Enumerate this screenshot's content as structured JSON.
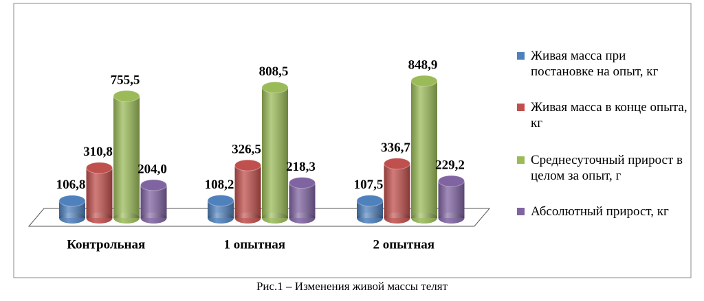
{
  "chart_data": {
    "type": "bar",
    "title": "Рис.1 – Изменения живой массы телят",
    "categories": [
      "Контрольная",
      "1 опытная",
      "2 опытная"
    ],
    "series": [
      {
        "name": "Живая масса при постановке на опыт, кг",
        "color": "#4f81bd",
        "values": [
          106.8,
          108.2,
          107.5
        ],
        "value_labels": [
          "106,8",
          "108,2",
          "107,5"
        ]
      },
      {
        "name": "Живая масса в конце опыта, кг",
        "color": "#c0504d",
        "values": [
          310.8,
          326.5,
          336.7
        ],
        "value_labels": [
          "310,8",
          "326,5",
          "336,7"
        ]
      },
      {
        "name": "Среднесуточный прирост в целом за опыт, г",
        "color": "#9bbb59",
        "values": [
          755.5,
          808.5,
          848.9
        ],
        "value_labels": [
          "755,5",
          "808,5",
          "848,9"
        ]
      },
      {
        "name": "Абсолютный прирост, кг",
        "color": "#8064a2",
        "values": [
          204.0,
          218.3,
          229.2
        ],
        "value_labels": [
          "204,0",
          "218,3",
          "229,2"
        ]
      }
    ]
  }
}
